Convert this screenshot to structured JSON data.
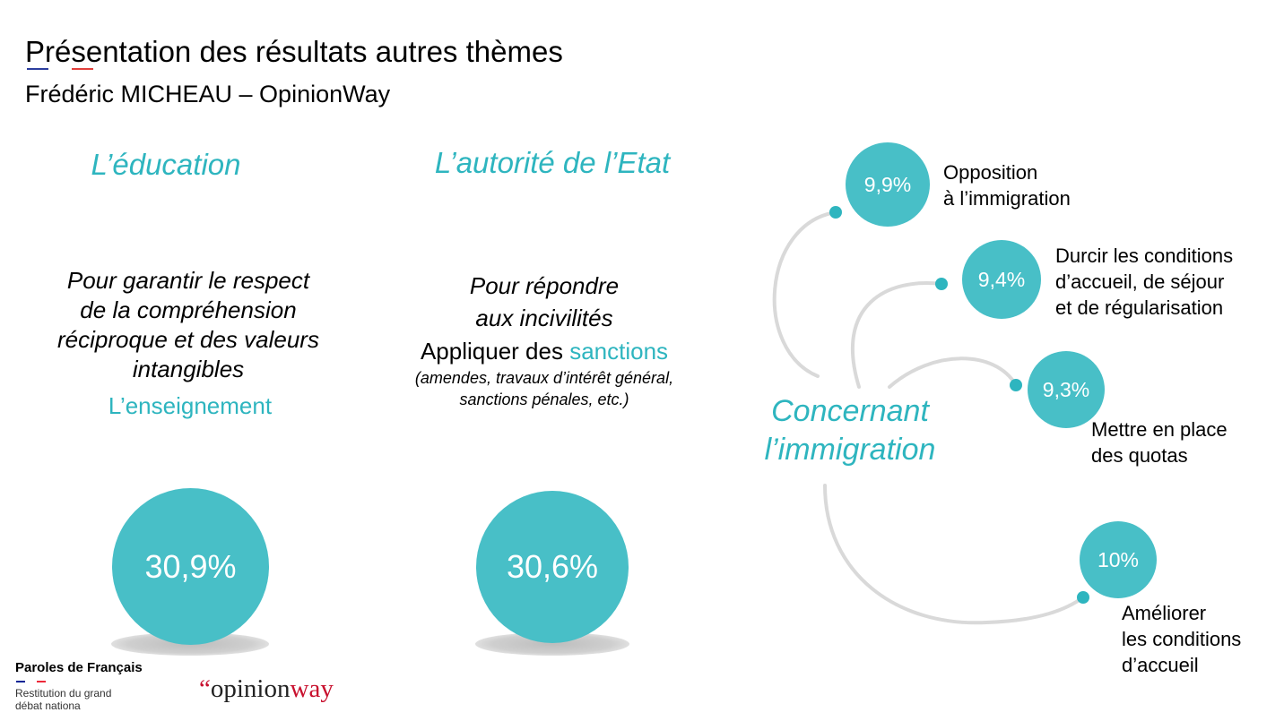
{
  "header": {
    "title": "Présentation des résultats autres thèmes",
    "subtitle": "Frédéric MICHEAU – OpinionWay"
  },
  "education": {
    "heading": "L’éducation",
    "question_lines": [
      "Pour garantir le respect",
      "de la compréhension",
      "réciproque et des valeurs",
      "intangibles"
    ],
    "answer": "L’enseignement",
    "percent": "30,9%"
  },
  "authority": {
    "heading": "L’autorité de l’Etat",
    "question_lines": [
      "Pour répondre",
      "aux incivilités"
    ],
    "answer_prefix": "Appliquer des ",
    "answer_highlight": "sanctions",
    "note_lines": [
      "(amendes, travaux d’intérêt général,",
      "sanctions pénales, etc.)"
    ],
    "percent": "30,6%"
  },
  "immigration": {
    "heading_lines": [
      "Concernant",
      "l’immigration"
    ],
    "items": [
      {
        "percent": "9,9%",
        "label_lines": [
          "Opposition",
          "à l’immigration"
        ]
      },
      {
        "percent": "9,4%",
        "label_lines": [
          "Durcir les conditions",
          "d’accueil, de séjour",
          "et de régularisation"
        ]
      },
      {
        "percent": "9,3%",
        "label_lines": [
          "Mettre en place",
          "des quotas"
        ]
      },
      {
        "percent": "10%",
        "label_lines": [
          "Améliorer",
          "les conditions",
          "d’accueil"
        ]
      }
    ]
  },
  "footer": {
    "brand": "Paroles de Français",
    "brand_sub_lines": [
      "Restitution du grand",
      "débat nationa"
    ],
    "logo_quote": "“",
    "logo_word_1": "opinion",
    "logo_word_2": "way"
  },
  "colors": {
    "accent": "#2eb5bf",
    "circle": "#48bfc7",
    "arc": "#d9d9d9",
    "logo_red": "#c8102e",
    "flag_blue": "#002395",
    "flag_red": "#ed2939"
  }
}
